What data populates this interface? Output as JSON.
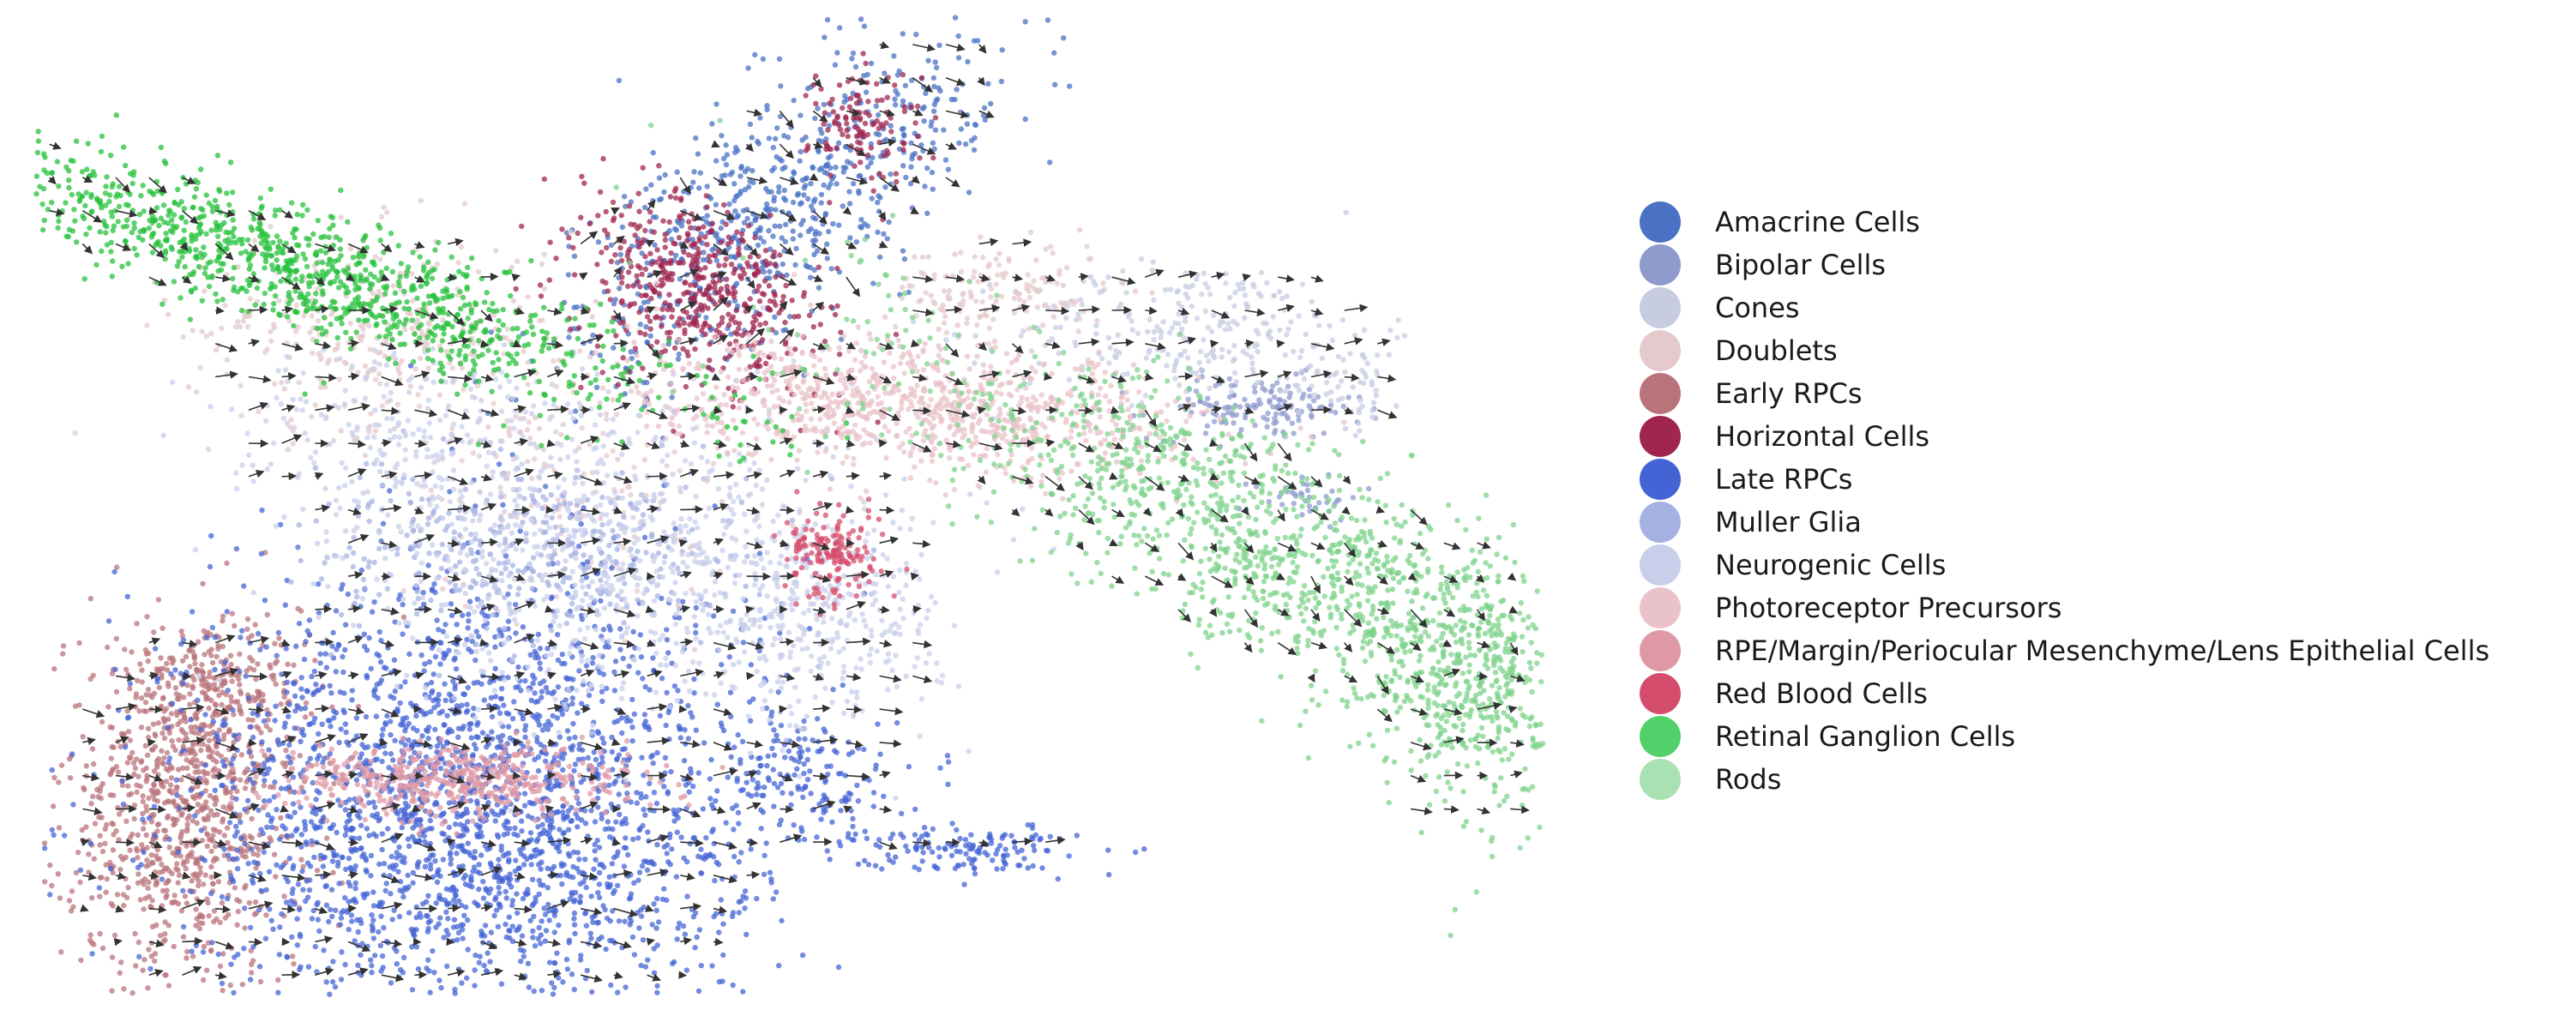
{
  "chart_data": {
    "type": "scatter",
    "title": "",
    "xlabel": "",
    "ylabel": "",
    "axes_visible": false,
    "grid": false,
    "legend_position": "right",
    "velocity_arrows": true,
    "xlim": [
      0,
      100
    ],
    "ylim": [
      0,
      100
    ],
    "series": [
      {
        "name": "Amacrine Cells",
        "color": "#4a72c4",
        "clusters": [
          {
            "cx": 49.0,
            "cy": 80.0,
            "sx": 4.0,
            "sy": 11.0,
            "angle": -35,
            "n": 700
          }
        ]
      },
      {
        "name": "Bipolar Cells",
        "color": "#8f9bcd",
        "clusters": [
          {
            "cx": 81.0,
            "cy": 60.0,
            "sx": 3.5,
            "sy": 1.6,
            "angle": 0,
            "n": 140
          },
          {
            "cx": 84.0,
            "cy": 51.0,
            "sx": 2.0,
            "sy": 1.2,
            "angle": 0,
            "n": 40
          }
        ]
      },
      {
        "name": "Cones",
        "color": "#c7cce1",
        "clusters": [
          {
            "cx": 77.0,
            "cy": 68.0,
            "sx": 6.0,
            "sy": 3.5,
            "angle": 0,
            "n": 260
          },
          {
            "cx": 87.0,
            "cy": 63.0,
            "sx": 2.0,
            "sy": 2.5,
            "angle": 0,
            "n": 60
          }
        ]
      },
      {
        "name": "Doublets",
        "color": "#e4cacc",
        "clusters": [
          {
            "cx": 22.0,
            "cy": 68.0,
            "sx": 6.0,
            "sy": 5.0,
            "angle": 0,
            "n": 300
          },
          {
            "cx": 64.0,
            "cy": 72.0,
            "sx": 3.5,
            "sy": 2.5,
            "angle": 0,
            "n": 150
          },
          {
            "cx": 35.0,
            "cy": 55.0,
            "sx": 6.0,
            "sy": 8.0,
            "angle": 0,
            "n": 200
          }
        ]
      },
      {
        "name": "Early RPCs",
        "color": "#b9747b",
        "clusters": [
          {
            "cx": 10.0,
            "cy": 19.0,
            "sx": 4.0,
            "sy": 9.0,
            "angle": 0,
            "n": 900
          },
          {
            "cx": 12.0,
            "cy": 31.0,
            "sx": 3.0,
            "sy": 3.0,
            "angle": 0,
            "n": 200
          }
        ]
      },
      {
        "name": "Horizontal Cells",
        "color": "#a0254f",
        "clusters": [
          {
            "cx": 44.0,
            "cy": 72.0,
            "sx": 3.5,
            "sy": 5.0,
            "angle": 30,
            "n": 500
          },
          {
            "cx": 55.0,
            "cy": 89.0,
            "sx": 1.8,
            "sy": 3.0,
            "angle": 0,
            "n": 120
          }
        ]
      },
      {
        "name": "Late RPCs",
        "color": "#4464d6",
        "clusters": [
          {
            "cx": 29.0,
            "cy": 19.0,
            "sx": 9.5,
            "sy": 12.0,
            "angle": 0,
            "n": 2600
          },
          {
            "cx": 51.0,
            "cy": 22.0,
            "sx": 3.0,
            "sy": 3.5,
            "angle": 0,
            "n": 160
          },
          {
            "cx": 62.0,
            "cy": 15.0,
            "sx": 3.5,
            "sy": 1.3,
            "angle": 0,
            "n": 140
          }
        ]
      },
      {
        "name": "Muller Glia",
        "color": "#a6b1e3",
        "clusters": [
          {
            "cx": 33.0,
            "cy": 45.0,
            "sx": 7.0,
            "sy": 4.0,
            "angle": 0,
            "n": 400
          }
        ]
      },
      {
        "name": "Neurogenic Cells",
        "color": "#c9cfeb",
        "clusters": [
          {
            "cx": 40.0,
            "cy": 45.0,
            "sx": 9.0,
            "sy": 8.0,
            "angle": 0,
            "n": 800
          },
          {
            "cx": 25.0,
            "cy": 57.0,
            "sx": 6.0,
            "sy": 5.0,
            "angle": 0,
            "n": 250
          },
          {
            "cx": 52.0,
            "cy": 38.0,
            "sx": 4.0,
            "sy": 5.0,
            "angle": 0,
            "n": 250
          }
        ]
      },
      {
        "name": "Photoreceptor Precursors",
        "color": "#e9c3c9",
        "clusters": [
          {
            "cx": 59.0,
            "cy": 60.0,
            "sx": 9.0,
            "sy": 3.2,
            "angle": -8,
            "n": 900
          }
        ]
      },
      {
        "name": "RPE/Margin/Periocular Mesenchyme/Lens Epithelial Cells",
        "color": "#df99a6",
        "clusters": [
          {
            "cx": 28.0,
            "cy": 22.0,
            "sx": 6.0,
            "sy": 1.8,
            "angle": 0,
            "n": 500
          }
        ]
      },
      {
        "name": "Red Blood Cells",
        "color": "#d54d6c",
        "clusters": [
          {
            "cx": 53.0,
            "cy": 45.0,
            "sx": 1.6,
            "sy": 2.2,
            "angle": 0,
            "n": 160
          }
        ]
      },
      {
        "name": "Retinal Ganglion Cells",
        "color": "#27c13c",
        "clusters": [
          {
            "cx": 18.0,
            "cy": 74.0,
            "sx": 14.0,
            "sy": 2.8,
            "angle": -28,
            "n": 1100
          }
        ]
      },
      {
        "name": "Rods",
        "color": "#7fd38c",
        "clusters": [
          {
            "cx": 84.0,
            "cy": 44.0,
            "sx": 17.0,
            "sy": 4.8,
            "angle": -40,
            "n": 1500
          },
          {
            "cx": 95.0,
            "cy": 30.0,
            "sx": 3.0,
            "sy": 7.0,
            "angle": 0,
            "n": 300
          }
        ]
      }
    ]
  },
  "legend": {
    "items": [
      {
        "label": "Amacrine Cells",
        "color": "#4a72c4"
      },
      {
        "label": "Bipolar Cells",
        "color": "#8f9bcd"
      },
      {
        "label": "Cones",
        "color": "#c7cce1"
      },
      {
        "label": "Doublets",
        "color": "#e4cacc"
      },
      {
        "label": "Early RPCs",
        "color": "#b9747b"
      },
      {
        "label": "Horizontal Cells",
        "color": "#a0254f"
      },
      {
        "label": "Late RPCs",
        "color": "#4464d6"
      },
      {
        "label": "Muller Glia",
        "color": "#a6b1e3"
      },
      {
        "label": "Neurogenic Cells",
        "color": "#c9cfeb"
      },
      {
        "label": "Photoreceptor Precursors",
        "color": "#e9c3c9"
      },
      {
        "label": "RPE/Margin/Periocular Mesenchyme/Lens Epithelial Cells",
        "color": "#df99a6"
      },
      {
        "label": "Red Blood Cells",
        "color": "#d54d6c"
      },
      {
        "label": "Retinal Ganglion Cells",
        "color": "#52d16a"
      },
      {
        "label": "Rods",
        "color": "#a9e1b2"
      }
    ]
  }
}
